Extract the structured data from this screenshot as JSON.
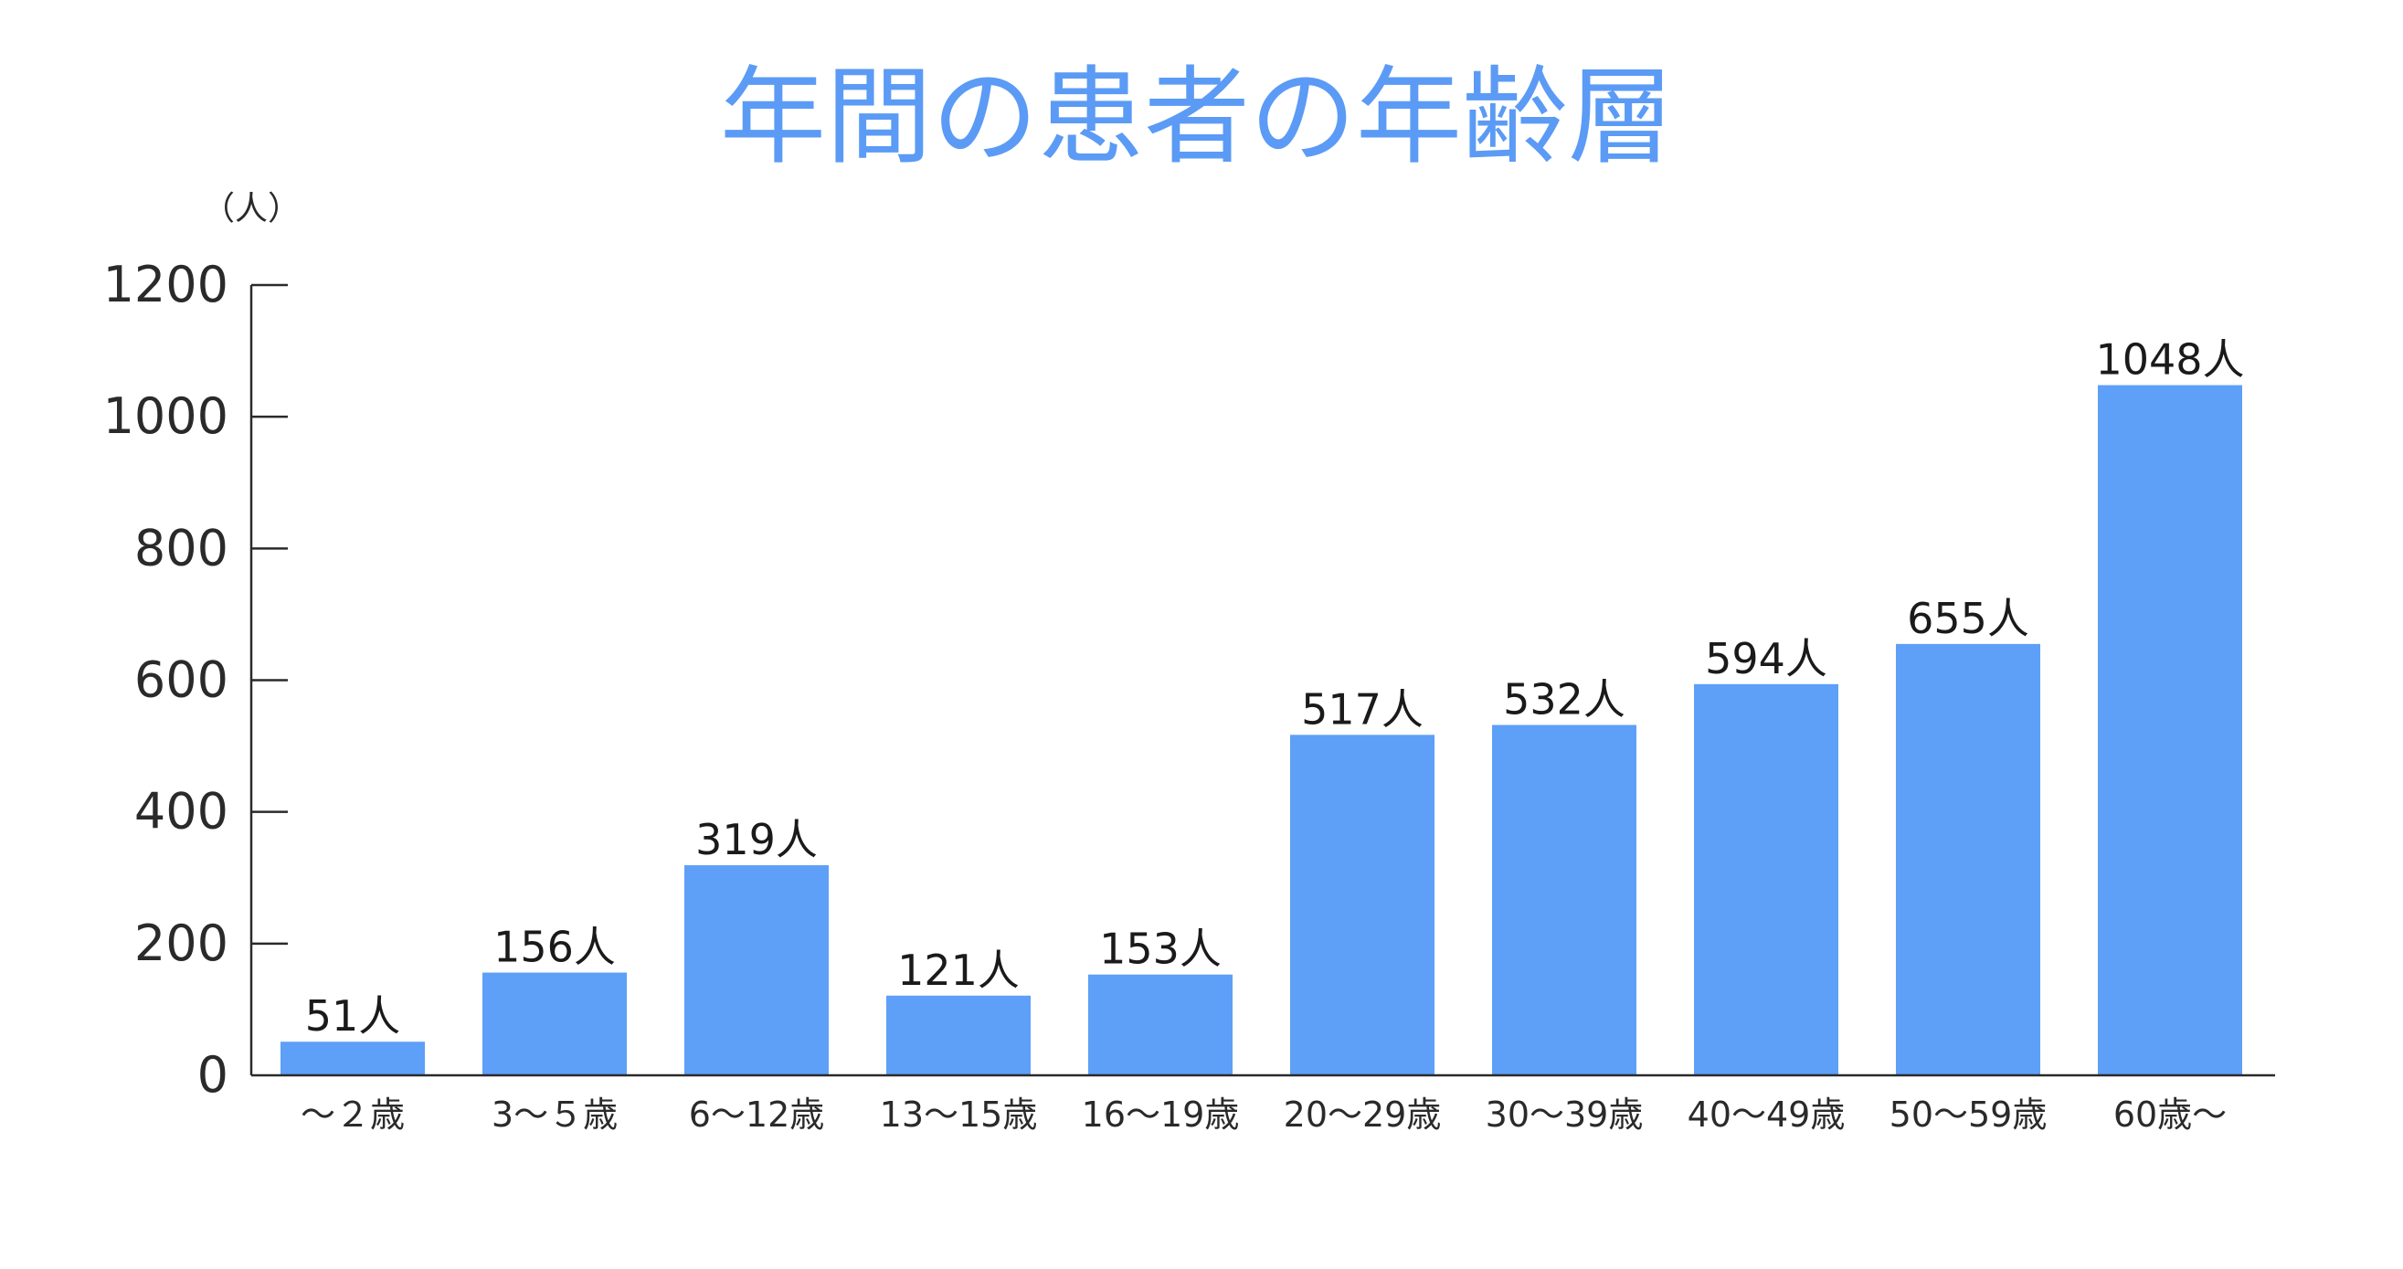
{
  "chart_data": {
    "type": "bar",
    "title": "年間の患者の年齢層",
    "ylabel": "（人）",
    "xlabel": "",
    "ylim": [
      0,
      1200
    ],
    "yticks": [
      0,
      200,
      400,
      600,
      800,
      1000,
      1200
    ],
    "grid": false,
    "categories": [
      "〜２歳",
      "3〜５歳",
      "6〜12歳",
      "13〜15歳",
      "16〜19歳",
      "20〜29歳",
      "30〜39歳",
      "40〜49歳",
      "50〜59歳",
      "60歳〜"
    ],
    "series": [
      {
        "values": [
          51,
          156,
          319,
          121,
          153,
          517,
          532,
          594,
          655,
          1048
        ],
        "data_labels": [
          "51人",
          "156人",
          "319人",
          "121人",
          "153人",
          "517人",
          "532人",
          "594人",
          "655人",
          "1048人"
        ]
      }
    ],
    "colors": {
      "bar": "#5e9ff7",
      "title": "#5b9bf5",
      "axis": "#2a2a2a"
    }
  }
}
